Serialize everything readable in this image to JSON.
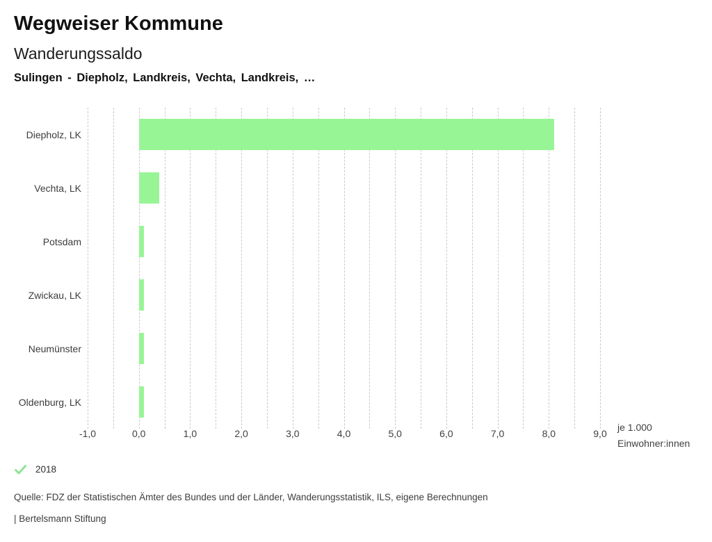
{
  "header": {
    "title": "Wegweiser Kommune",
    "subtitle": "Wanderungssaldo",
    "comparison": "Sulingen - Diepholz, Landkreis, Vechta, Landkreis, …"
  },
  "chart_data": {
    "type": "bar",
    "orientation": "horizontal",
    "title": "Wanderungssaldo",
    "categories": [
      "Diepholz, LK",
      "Vechta, LK",
      "Potsdam",
      "Zwickau, LK",
      "Neumünster",
      "Oldenburg, LK"
    ],
    "series": [
      {
        "name": "2018",
        "values": [
          8.1,
          0.4,
          0.1,
          0.1,
          0.1,
          0.1
        ]
      }
    ],
    "xlim": [
      -1.0,
      9.0
    ],
    "tick_step": 1.0,
    "grid_step": 0.5,
    "tick_labels": [
      "-1,0",
      "0,0",
      "1,0",
      "2,0",
      "3,0",
      "4,0",
      "5,0",
      "6,0",
      "7,0",
      "8,0",
      "9,0"
    ],
    "xlabel": "je 1.000 Einwohner:innen",
    "ylabel": "",
    "grid": true,
    "legend_position": "bottom-left",
    "bar_color": "#98f596"
  },
  "unit_label": {
    "line1": "je 1.000",
    "line2": "Einwohner:innen"
  },
  "legend": {
    "icon": "checkmark-icon",
    "icon_color": "#8fe594",
    "label": "2018"
  },
  "footer": {
    "source": "Quelle: FDZ der Statistischen Ämter des Bundes und der Länder, Wanderungsstatistik, ILS, eigene Berechnungen",
    "branding": "| Bertelsmann Stiftung"
  }
}
